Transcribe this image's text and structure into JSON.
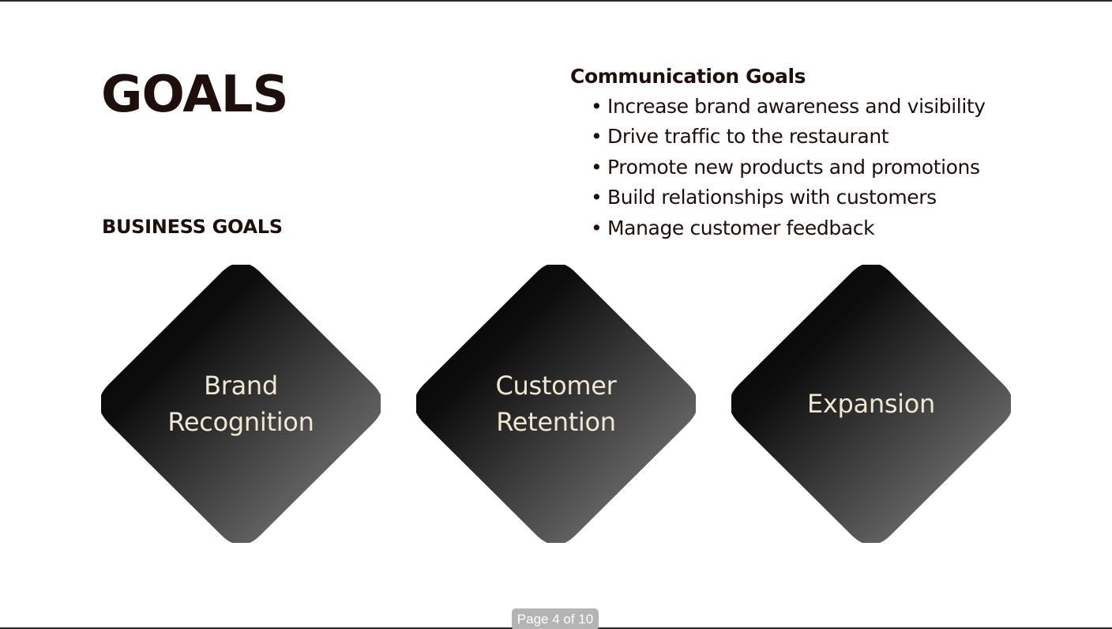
{
  "slide": {
    "title": "GOALS",
    "section_label": "BUSINESS GOALS",
    "communication": {
      "heading": "Communication Goals",
      "bullet": "•",
      "items": [
        "Increase brand awareness and visibility",
        "Drive traffic to the restaurant",
        "Promote new products and promotions",
        "Build relationships with customers",
        "Manage customer feedback"
      ]
    },
    "business_goals": [
      {
        "lines": [
          "Brand",
          "Recognition"
        ]
      },
      {
        "lines": [
          "Customer",
          "Retention"
        ]
      },
      {
        "lines": [
          "Expansion"
        ]
      }
    ]
  },
  "viewer": {
    "page_indicator": "Page 4 of 10"
  },
  "colors": {
    "text": "#1f0f0c",
    "diamond_dark": "#050505",
    "diamond_light": "#767676",
    "diamond_text": "#f1e6d2",
    "page_indicator_bg": "#b4b4b4"
  }
}
